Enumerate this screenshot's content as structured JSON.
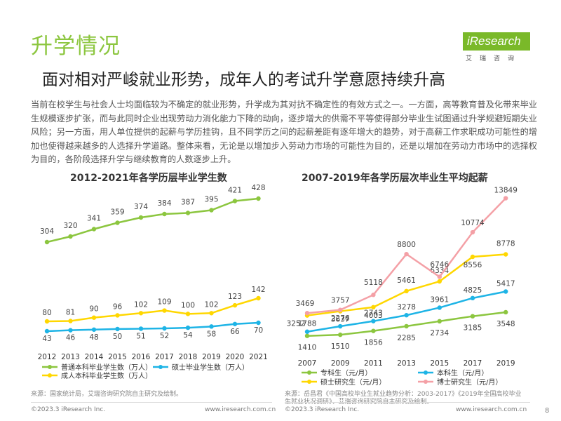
{
  "page": {
    "section_title": "升学情况",
    "headline": "面对相对严峻就业形势，成年人的考试升学意愿持续升高",
    "lead": "当前在校学生与社会人士均面临较为不确定的就业形势，升学成为其对抗不确定性的有效方式之一。一方面，高等教育普及化带来毕业生规模逐步扩张，而与此同时企业出现劳动力消化能力下降的动向，逐步增大的供需不平等使得部分毕业生试图通过升学规避短期失业风险；另一方面，用人单位提供的起薪与学历挂钩，且不同学历之间的起薪差距有逐年增大的趋势，对于高薪工作求职成功可能性的增加也使得越来越多的人选择升学道路。整体来看，无论是以增加步入劳动力市场的可能性为目的，还是以增加在劳动力市场中的选择权为目的，各阶段选择升学与继续教育的人数逐步上升。",
    "page_number": "8",
    "colors": {
      "accent": "#8cc63f",
      "green": "#8cc63f",
      "yellow": "#ffd700",
      "cyan": "#1eb4e6",
      "pink": "#f4a0a6"
    }
  },
  "logo": {
    "main": "iResearch",
    "sub": "艾瑞咨询"
  },
  "left": {
    "source": "来源：国家统计局，艾瑞咨询研究院自主研究及绘制。",
    "footer_copyright": "©2023.3 iResearch Inc.",
    "footer_url": "www.iresearch.com.cn"
  },
  "right": {
    "source_line1": "来源：岳昌君《中国高校毕业生就业趋势分析：2003-2017》《2019年全国高校毕业",
    "source_line2": "生就业状况调研》，艾瑞咨询研究院自主研究及绘制。",
    "footer_copyright": "©2023.3 iResearch Inc.",
    "footer_url": "www.iresearch.com.cn"
  },
  "chart_data": [
    {
      "type": "line",
      "title": "2012-2021年各学历层毕业学生数",
      "xlabel": "",
      "ylabel": "",
      "categories": [
        "2012",
        "2013",
        "2014",
        "2015",
        "2016",
        "2017",
        "2018",
        "2019",
        "2020",
        "2021"
      ],
      "series": [
        {
          "name": "普通本科毕业学生数（万人）",
          "color": "#8cc63f",
          "values": [
            304,
            320,
            341,
            359,
            374,
            384,
            387,
            395,
            421,
            428
          ]
        },
        {
          "name": "成人本科毕业学生数（万人）",
          "color": "#ffd700",
          "values": [
            80,
            81,
            90,
            96,
            102,
            109,
            100,
            102,
            123,
            142
          ]
        },
        {
          "name": "硕士毕业学生数（万人）",
          "color": "#1eb4e6",
          "values": [
            43,
            46,
            48,
            50,
            51,
            52,
            54,
            58,
            66,
            70
          ]
        }
      ],
      "legend_position": "bottom",
      "grid": false
    },
    {
      "type": "line",
      "title": "2007-2019年各学历层次毕业生平均起薪",
      "xlabel": "",
      "ylabel": "",
      "categories": [
        "2007",
        "2009",
        "2011",
        "2013",
        "2015",
        "2017",
        "2019"
      ],
      "series": [
        {
          "name": "专科生（元/月）",
          "color": "#8cc63f",
          "values": [
            1410,
            1510,
            1856,
            2285,
            2734,
            3185,
            3548
          ]
        },
        {
          "name": "本科生（元/月）",
          "color": "#1eb4e6",
          "values": [
            1788,
            2276,
            2743,
            3278,
            3961,
            4825,
            5417
          ]
        },
        {
          "name": "硕士研究生（元/月）",
          "color": "#ffd700",
          "values": [
            3252,
            3637,
            4003,
            5461,
            6334,
            8556,
            8778
          ]
        },
        {
          "name": "博士研究生（元/月）",
          "color": "#f4a0a6",
          "values": [
            3469,
            3757,
            5118,
            8800,
            6746,
            10774,
            13849
          ]
        }
      ],
      "legend_position": "bottom",
      "grid": false
    }
  ]
}
